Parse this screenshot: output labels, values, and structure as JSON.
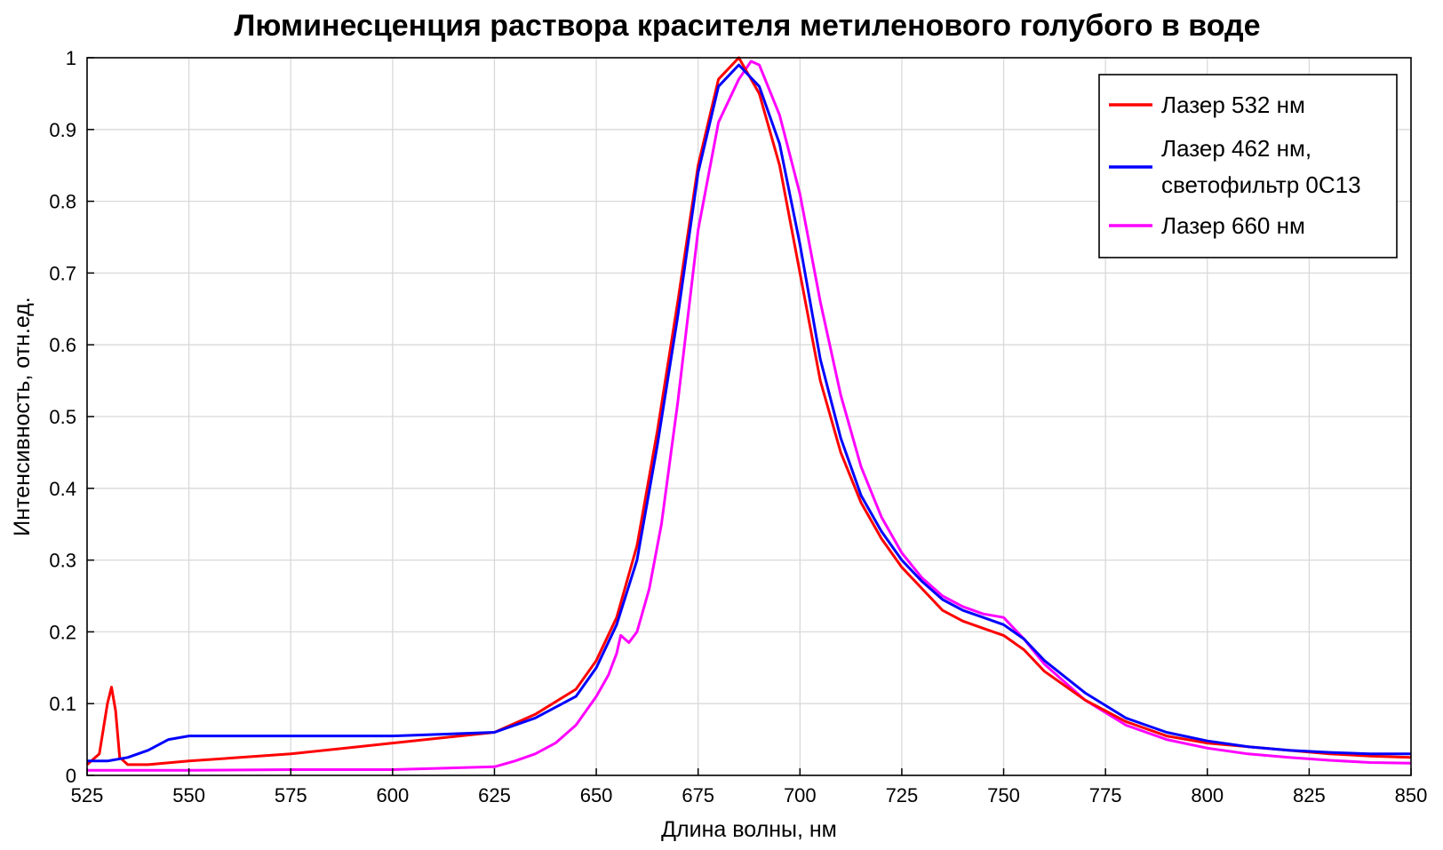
{
  "chart_data": {
    "type": "line",
    "title": "Люминесценция раствора красителя метиленового голубого в воде",
    "xlabel": "Длина волны, нм",
    "ylabel": "Интенсивность, отн.ед.",
    "xlim": [
      525,
      850
    ],
    "ylim": [
      0,
      1
    ],
    "xticks": [
      "525",
      "550",
      "575",
      "600",
      "625",
      "650",
      "675",
      "700",
      "725",
      "750",
      "775",
      "800",
      "825",
      "850"
    ],
    "yticks": [
      "0",
      "0.1",
      "0.2",
      "0.3",
      "0.4",
      "0.5",
      "0.6",
      "0.7",
      "0.8",
      "0.9",
      "1"
    ],
    "grid": true,
    "legend_position": "top-right",
    "series": [
      {
        "name": "Лазер 532 нм",
        "color": "#ff0000",
        "x": [
          525,
          528,
          530,
          531,
          532,
          533,
          535,
          540,
          550,
          575,
          600,
          625,
          635,
          645,
          650,
          655,
          660,
          665,
          670,
          675,
          680,
          685,
          690,
          695,
          700,
          705,
          710,
          715,
          720,
          725,
          730,
          735,
          740,
          745,
          750,
          755,
          760,
          770,
          780,
          790,
          800,
          810,
          820,
          830,
          840,
          850
        ],
        "y": [
          0.015,
          0.03,
          0.1,
          0.123,
          0.09,
          0.025,
          0.015,
          0.015,
          0.02,
          0.03,
          0.045,
          0.06,
          0.085,
          0.12,
          0.16,
          0.22,
          0.32,
          0.48,
          0.66,
          0.85,
          0.97,
          1.0,
          0.95,
          0.85,
          0.7,
          0.55,
          0.45,
          0.38,
          0.33,
          0.29,
          0.26,
          0.23,
          0.215,
          0.205,
          0.195,
          0.175,
          0.145,
          0.105,
          0.075,
          0.055,
          0.045,
          0.04,
          0.035,
          0.03,
          0.027,
          0.025
        ]
      },
      {
        "name": "Лазер 462 нм,",
        "name2": "светофильтр 0С13",
        "color": "#0000ff",
        "x": [
          525,
          530,
          535,
          540,
          545,
          550,
          575,
          600,
          625,
          635,
          645,
          650,
          655,
          660,
          665,
          670,
          675,
          680,
          685,
          690,
          695,
          700,
          705,
          710,
          715,
          720,
          725,
          730,
          735,
          740,
          745,
          750,
          755,
          760,
          770,
          780,
          790,
          800,
          810,
          820,
          830,
          840,
          850
        ],
        "y": [
          0.02,
          0.02,
          0.025,
          0.035,
          0.05,
          0.055,
          0.055,
          0.055,
          0.06,
          0.08,
          0.11,
          0.15,
          0.21,
          0.3,
          0.46,
          0.64,
          0.84,
          0.96,
          0.99,
          0.96,
          0.88,
          0.74,
          0.58,
          0.47,
          0.39,
          0.34,
          0.3,
          0.27,
          0.245,
          0.23,
          0.22,
          0.21,
          0.19,
          0.16,
          0.115,
          0.08,
          0.06,
          0.048,
          0.04,
          0.035,
          0.032,
          0.03,
          0.03
        ]
      },
      {
        "name": "Лазер 660 нм",
        "color": "#ff00ff",
        "x": [
          525,
          550,
          575,
          600,
          625,
          630,
          635,
          640,
          645,
          650,
          653,
          655,
          656,
          658,
          660,
          663,
          666,
          670,
          675,
          680,
          685,
          688,
          690,
          695,
          700,
          705,
          710,
          715,
          720,
          725,
          730,
          735,
          740,
          745,
          750,
          755,
          760,
          770,
          780,
          790,
          800,
          810,
          820,
          830,
          840,
          850
        ],
        "y": [
          0.007,
          0.007,
          0.008,
          0.008,
          0.012,
          0.02,
          0.03,
          0.045,
          0.07,
          0.11,
          0.14,
          0.17,
          0.195,
          0.185,
          0.2,
          0.26,
          0.35,
          0.52,
          0.76,
          0.91,
          0.97,
          0.995,
          0.99,
          0.92,
          0.81,
          0.66,
          0.53,
          0.43,
          0.36,
          0.31,
          0.275,
          0.25,
          0.235,
          0.225,
          0.22,
          0.19,
          0.155,
          0.105,
          0.07,
          0.05,
          0.038,
          0.03,
          0.025,
          0.021,
          0.018,
          0.017
        ]
      }
    ]
  }
}
